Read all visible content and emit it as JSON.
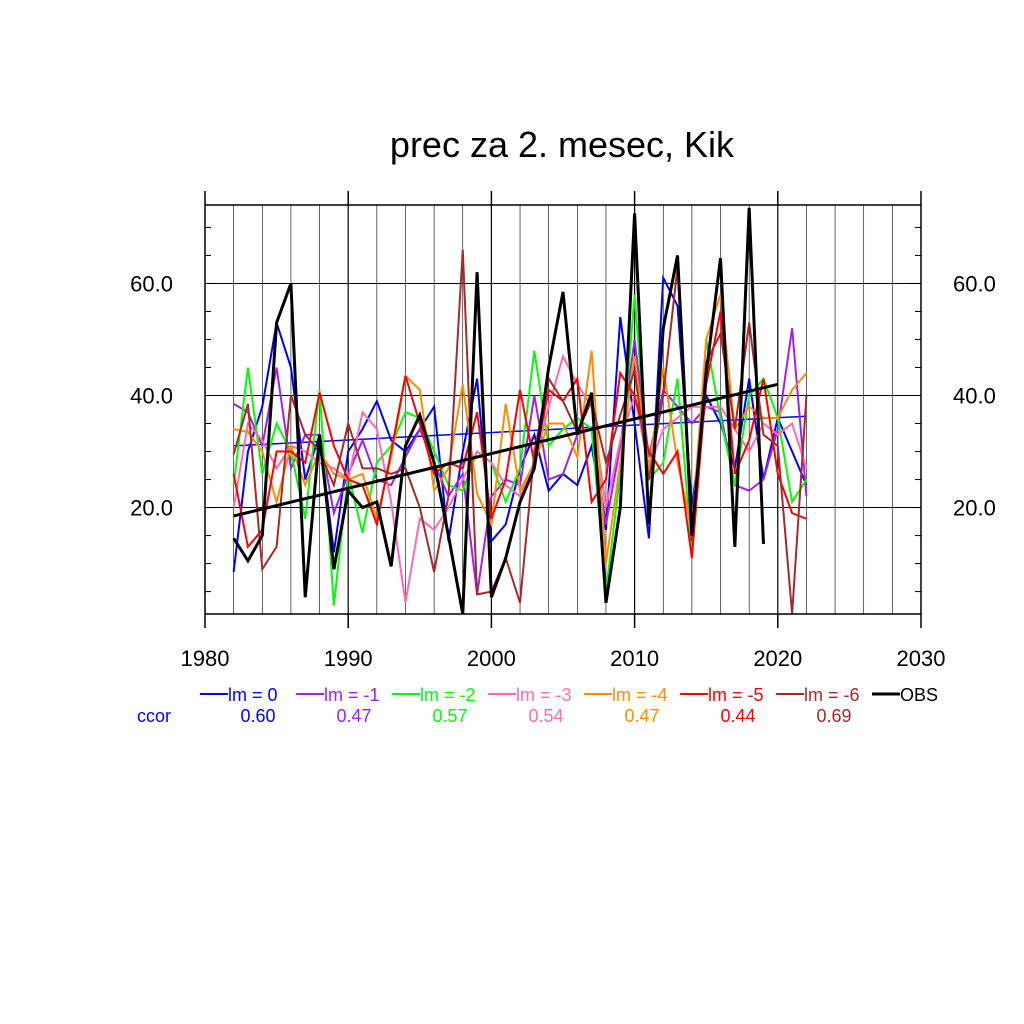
{
  "chart_data": {
    "type": "line",
    "title": "prec za 2. mesec, Kik",
    "xlim": [
      1980,
      2030
    ],
    "ylim": [
      1,
      74
    ],
    "x_ticks": [
      1980,
      1990,
      2000,
      2010,
      2020,
      2030
    ],
    "x_tick_labels": [
      "1980",
      "1990",
      "2000",
      "2010",
      "2020",
      "2030"
    ],
    "y_ticks": [
      20,
      40,
      60
    ],
    "y_tick_labels": [
      "20.0",
      "40.0",
      "60.0"
    ],
    "grid": true,
    "legend_position": "bottom",
    "ccor_label": "ccor",
    "x": [
      1982,
      1983,
      1984,
      1985,
      1986,
      1987,
      1988,
      1989,
      1990,
      1991,
      1992,
      1993,
      1994,
      1995,
      1996,
      1997,
      1998,
      1999,
      2000,
      2001,
      2002,
      2003,
      2004,
      2005,
      2006,
      2007,
      2008,
      2009,
      2010,
      2011,
      2012,
      2013,
      2014,
      2015,
      2016,
      2017,
      2018,
      2019,
      2020,
      2021,
      2022
    ],
    "series": [
      {
        "name": "lm = 0",
        "color": "#0000ff",
        "ccor": "0.60",
        "values": [
          8.5,
          30,
          38,
          53,
          45,
          25,
          33,
          12,
          30,
          34,
          39,
          32,
          30,
          34,
          38,
          14,
          30,
          43,
          14,
          17,
          27,
          33,
          23,
          26,
          24,
          31,
          16,
          54,
          35,
          14.5,
          61,
          56,
          20,
          40,
          35,
          27,
          43,
          25,
          36,
          30,
          24
        ],
        "trend": [
          [
            1982,
            31
          ],
          [
            2022,
            36.3
          ]
        ]
      },
      {
        "name": "lm = -1",
        "color": "#a020f0",
        "ccor": "0.47",
        "values": [
          38.5,
          37,
          31,
          45,
          27,
          33,
          33,
          19,
          26,
          32,
          25,
          24,
          29,
          34,
          28,
          22,
          26,
          4.5,
          22,
          25,
          24,
          40,
          25,
          26,
          33,
          34,
          17,
          31,
          50,
          29,
          41,
          38,
          35,
          38,
          37,
          24,
          23,
          25,
          34,
          52,
          22
        ]
      },
      {
        "name": "lm = -2",
        "color": "#00ff00",
        "ccor": "0.57",
        "values": [
          24,
          45,
          26,
          35,
          30,
          18,
          41,
          2.5,
          26,
          15.5,
          28,
          31,
          37,
          36,
          30,
          24,
          23,
          30,
          28,
          21,
          27,
          48,
          31,
          34,
          36,
          34,
          5,
          26,
          58,
          25,
          28,
          43,
          12,
          50,
          36,
          24,
          40,
          43,
          36,
          21,
          25
        ]
      },
      {
        "name": "lm = -3",
        "color": "#ff69b4",
        "ccor": "0.54",
        "values": [
          20,
          35,
          32,
          27,
          31,
          30,
          28,
          27,
          25,
          37,
          34,
          21,
          3,
          18,
          16,
          20,
          25,
          30,
          28,
          24,
          22,
          28,
          38,
          47,
          42,
          38,
          20,
          32,
          40,
          27,
          34,
          36,
          38,
          38,
          38,
          34,
          30,
          35,
          33,
          35,
          27
        ]
      },
      {
        "name": "lm = -4",
        "color": "#ff8c00",
        "ccor": "0.47",
        "values": [
          34,
          33.5,
          30,
          21,
          31,
          24,
          30,
          26,
          25,
          26,
          18,
          29,
          43.5,
          41,
          23,
          27,
          42,
          22.5,
          17,
          38.5,
          23,
          28,
          35,
          35,
          29,
          48,
          10,
          28,
          47,
          27,
          45,
          28,
          16,
          50,
          58,
          34,
          38,
          36,
          36,
          41,
          44
        ]
      },
      {
        "name": "lm = -5",
        "color": "#ff0000",
        "ccor": "0.44",
        "values": [
          26,
          13,
          16,
          30,
          30,
          28,
          40.5,
          31,
          25,
          24,
          17,
          30,
          43.5,
          35,
          26,
          28,
          27,
          37,
          18,
          25,
          41,
          28,
          41,
          39,
          43,
          21,
          25,
          44,
          40,
          30,
          26,
          30,
          11,
          42,
          55,
          26,
          32,
          43,
          26,
          19,
          18
        ]
      },
      {
        "name": "lm = -6",
        "color": "#a52a2a",
        "ccor": "0.69",
        "values": [
          29.5,
          38.5,
          9,
          13,
          40,
          33,
          30,
          24,
          35,
          27,
          27,
          26,
          27,
          20,
          8.5,
          22,
          66,
          4.5,
          5,
          11,
          3,
          30,
          43,
          39,
          33.5,
          39,
          28,
          36.5,
          44.5,
          25,
          40,
          63,
          14,
          46,
          51,
          34,
          53,
          33,
          31,
          1,
          40
        ]
      },
      {
        "name": "OBS",
        "color": "#000000",
        "values": [
          14.5,
          10.5,
          15,
          53,
          60,
          4,
          33,
          9,
          23,
          20,
          21,
          9.5,
          31,
          36.5,
          28,
          15,
          1,
          62,
          4,
          11,
          21,
          27,
          45,
          58.5,
          33,
          40.5,
          3,
          20,
          72.5,
          17,
          52,
          65,
          15,
          44,
          64.5,
          13,
          73.5,
          13.5,
          null,
          null,
          null
        ],
        "trend": [
          [
            1982,
            18.5
          ],
          [
            2020,
            42
          ]
        ]
      }
    ]
  }
}
